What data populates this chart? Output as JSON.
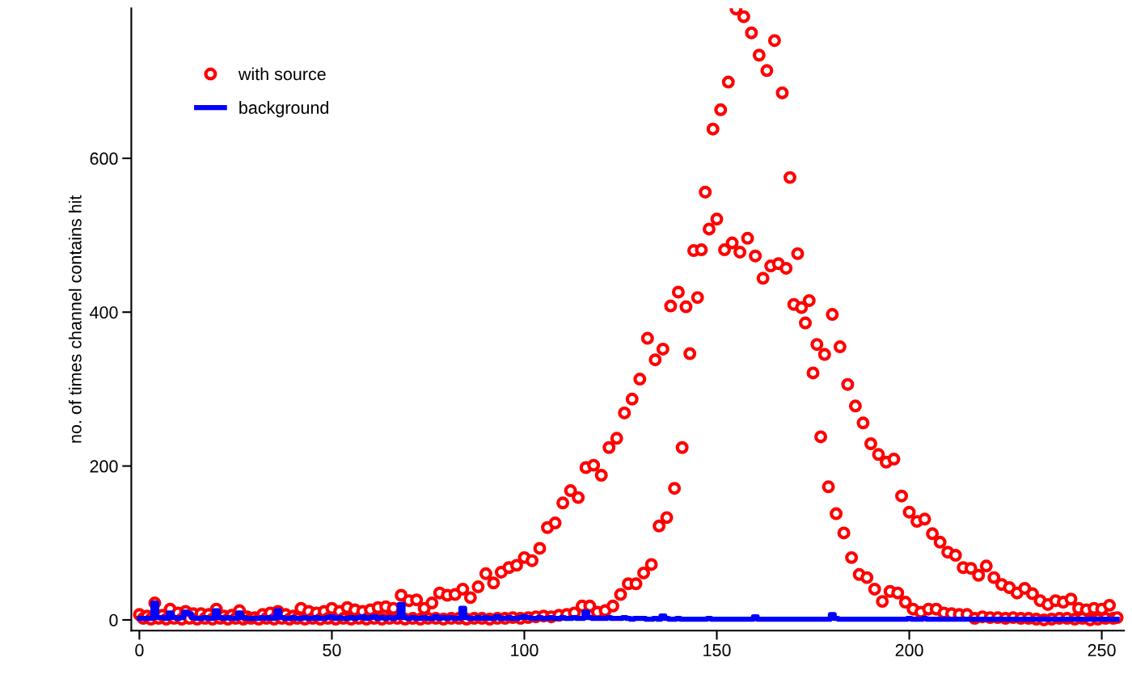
{
  "chart_data": {
    "type": "scatter",
    "ylabel": "no. of times channel contains hit",
    "x": [
      0,
      1,
      2,
      3,
      4,
      5,
      6,
      7,
      8,
      9,
      10,
      11,
      12,
      13,
      14,
      15,
      16,
      17,
      18,
      19,
      20,
      21,
      22,
      23,
      24,
      25,
      26,
      27,
      28,
      29,
      30,
      31,
      32,
      33,
      34,
      35,
      36,
      37,
      38,
      39,
      40,
      41,
      42,
      43,
      44,
      45,
      46,
      47,
      48,
      49,
      50,
      51,
      52,
      53,
      54,
      55,
      56,
      57,
      58,
      59,
      60,
      61,
      62,
      63,
      64,
      65,
      66,
      67,
      68,
      69,
      70,
      71,
      72,
      73,
      74,
      75,
      76,
      77,
      78,
      79,
      80,
      81,
      82,
      83,
      84,
      85,
      86,
      87,
      88,
      89,
      90,
      91,
      92,
      93,
      94,
      95,
      96,
      97,
      98,
      99,
      100,
      101,
      102,
      103,
      104,
      105,
      106,
      107,
      108,
      109,
      110,
      111,
      112,
      113,
      114,
      115,
      116,
      117,
      118,
      119,
      120,
      121,
      122,
      123,
      124,
      125,
      126,
      127,
      128,
      129,
      130,
      131,
      132,
      133,
      134,
      135,
      136,
      137,
      138,
      139,
      140,
      141,
      142,
      143,
      144,
      145,
      146,
      147,
      148,
      149,
      150,
      151,
      152,
      153,
      154,
      155,
      156,
      157,
      158,
      159,
      160,
      161,
      162,
      163,
      164,
      165,
      166,
      167,
      168,
      169,
      170,
      171,
      172,
      173,
      174,
      175,
      176,
      177,
      178,
      179,
      180,
      181,
      182,
      183,
      184,
      185,
      186,
      187,
      188,
      189,
      190,
      191,
      192,
      193,
      194,
      195,
      196,
      197,
      198,
      199,
      200,
      201,
      202,
      203,
      204,
      205,
      206,
      207,
      208,
      209,
      210,
      211,
      212,
      213,
      214,
      215,
      216,
      217,
      218,
      219,
      220,
      221,
      222,
      223,
      224,
      225,
      226,
      227,
      228,
      229,
      230,
      231,
      232,
      233,
      234,
      235,
      236,
      237,
      238,
      239,
      240,
      241,
      242,
      243,
      244,
      245,
      246,
      247,
      248,
      249,
      250,
      251,
      252,
      253,
      254
    ],
    "series": [
      {
        "name": "with source",
        "color": "#ff0000",
        "marker": "circle",
        "values": [
          7,
          2,
          5,
          1,
          22,
          2,
          6,
          1,
          14,
          2,
          9,
          1,
          11,
          2,
          8,
          1,
          8,
          2,
          7,
          1,
          14,
          2,
          5,
          1,
          6,
          2,
          12,
          1,
          4,
          2,
          3,
          1,
          7,
          2,
          9,
          1,
          11,
          2,
          7,
          1,
          5,
          2,
          15,
          1,
          11,
          2,
          9,
          1,
          11,
          2,
          15,
          1,
          11,
          2,
          16,
          1,
          13,
          2,
          11,
          1,
          13,
          2,
          16,
          1,
          17,
          2,
          15,
          2,
          32,
          1,
          25,
          2,
          26,
          1,
          15,
          2,
          22,
          2,
          35,
          1,
          32,
          2,
          33,
          2,
          40,
          1,
          29,
          2,
          43,
          2,
          60,
          1,
          48,
          2,
          62,
          2,
          68,
          3,
          71,
          2,
          81,
          3,
          77,
          4,
          93,
          5,
          120,
          4,
          126,
          6,
          152,
          7,
          168,
          9,
          159,
          18,
          198,
          18,
          201,
          10,
          188,
          12,
          224,
          18,
          236,
          33,
          269,
          47,
          287,
          47,
          313,
          61,
          366,
          72,
          338,
          122,
          352,
          133,
          408,
          171,
          426,
          224,
          407,
          346,
          480,
          419,
          481,
          556,
          508,
          638,
          521,
          663,
          481,
          699,
          490,
          794,
          478,
          784,
          496,
          763,
          473,
          734,
          444,
          714,
          460,
          753,
          463,
          685,
          457,
          575,
          410,
          476,
          406,
          386,
          415,
          321,
          358,
          238,
          345,
          173,
          397,
          138,
          355,
          113,
          306,
          81,
          278,
          59,
          256,
          55,
          229,
          40,
          215,
          24,
          205,
          37,
          209,
          35,
          161,
          23,
          140,
          14,
          128,
          10,
          131,
          14,
          112,
          14,
          101,
          9,
          88,
          8,
          84,
          7,
          68,
          7,
          67,
          2,
          58,
          4,
          70,
          3,
          55,
          3,
          46,
          2,
          42,
          3,
          35,
          2,
          41,
          2,
          34,
          1,
          25,
          0,
          20,
          1,
          25,
          2,
          23,
          2,
          27,
          1,
          15,
          2,
          13,
          0,
          15,
          1,
          14,
          2,
          19,
          2,
          3
        ]
      },
      {
        "name": "background",
        "type": "step",
        "color": "#0000ff",
        "marker": "none",
        "line_style": "solid",
        "values": [
          2,
          2,
          2,
          2,
          22,
          3,
          3,
          2,
          9,
          3,
          2,
          3,
          10,
          8,
          3,
          2,
          2,
          3,
          2,
          2,
          12,
          3,
          2,
          3,
          2,
          2,
          9,
          3,
          2,
          2,
          2,
          2,
          3,
          2,
          3,
          2,
          12,
          3,
          2,
          2,
          3,
          2,
          2,
          3,
          2,
          2,
          3,
          2,
          2,
          3,
          4,
          2,
          3,
          2,
          2,
          3,
          2,
          3,
          4,
          2,
          3,
          4,
          2,
          3,
          2,
          3,
          2,
          3,
          20,
          3,
          2,
          3,
          2,
          2,
          3,
          2,
          2,
          4,
          2,
          3,
          2,
          3,
          2,
          2,
          15,
          3,
          2,
          2,
          3,
          2,
          3,
          2,
          2,
          4,
          2,
          2,
          3,
          2,
          2,
          3,
          4,
          3,
          2,
          2,
          3,
          2,
          2,
          3,
          2,
          2,
          3,
          2,
          2,
          3,
          2,
          2,
          10,
          3,
          2,
          2,
          2,
          2,
          3,
          2,
          2,
          2,
          3,
          2,
          1,
          2,
          2,
          2,
          1,
          1,
          2,
          1,
          5,
          2,
          1,
          1,
          2,
          1,
          1,
          1,
          1,
          1,
          1,
          1,
          2,
          1,
          1,
          1,
          1,
          1,
          1,
          1,
          1,
          1,
          1,
          1,
          4,
          1,
          1,
          1,
          1,
          1,
          1,
          1,
          1,
          1,
          1,
          1,
          1,
          1,
          1,
          1,
          1,
          1,
          1,
          1,
          7,
          2,
          1,
          1,
          1,
          1,
          1,
          1,
          1,
          1,
          1,
          1,
          1,
          1,
          1,
          1,
          1,
          1,
          1,
          1,
          2,
          1,
          1,
          1,
          2,
          1,
          1,
          1,
          1,
          1,
          1,
          1,
          1,
          1,
          1,
          1,
          1,
          1,
          1,
          1,
          1,
          1,
          1,
          1,
          1,
          1,
          1,
          1,
          1,
          1,
          1,
          1,
          1,
          1,
          1,
          1,
          1,
          1,
          1,
          1,
          1,
          1,
          1,
          1,
          1,
          1,
          1,
          1,
          1,
          1,
          1,
          1,
          1,
          1,
          1
        ]
      }
    ],
    "xlim": [
      -2.1,
      255.8
    ],
    "ylim": [
      -14,
      795
    ],
    "xticks": [
      0,
      50,
      100,
      150,
      200,
      250
    ],
    "yticks": [
      0,
      200,
      400,
      600
    ],
    "grid": false,
    "legend": "top left"
  }
}
